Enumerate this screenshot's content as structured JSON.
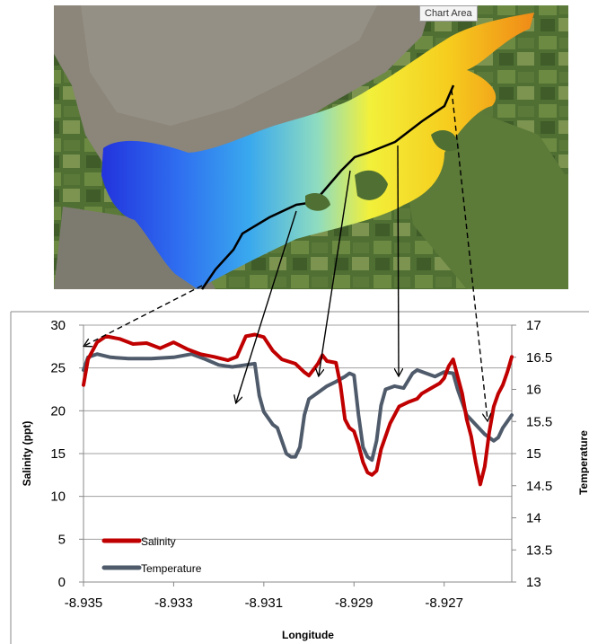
{
  "tooltip": "Chart Area",
  "colors": {
    "salinity": "#c00000",
    "temperature": "#4f5b6b",
    "gridline": "#a0a0a0"
  },
  "chart_data": {
    "type": "line",
    "xlabel": "Longitude",
    "ylabel_left": "Salinity (ppt)",
    "ylabel_right": "Temperature",
    "xlim": [
      -8.935,
      -8.9255
    ],
    "xticks": [
      "-8.935",
      "-8.933",
      "-8.931",
      "-8.929",
      "-8.927"
    ],
    "ylim_left": [
      0,
      30
    ],
    "yticks_left": [
      "0",
      "5",
      "10",
      "15",
      "20",
      "25",
      "30"
    ],
    "ylim_right": [
      13,
      17
    ],
    "yticks_right": [
      "13",
      "13.5",
      "14",
      "14.5",
      "15",
      "15.5",
      "16",
      "16.5",
      "17"
    ],
    "grid": true,
    "legend": {
      "position": "bottom-left",
      "entries": [
        "Salinity",
        "Temperature"
      ]
    },
    "series": [
      {
        "name": "Salinity",
        "axis": "left",
        "points": [
          [
            -8.935,
            23.0
          ],
          [
            -8.9349,
            26.0
          ],
          [
            -8.9347,
            28.0
          ],
          [
            -8.9345,
            28.7
          ],
          [
            -8.9342,
            28.4
          ],
          [
            -8.9339,
            27.8
          ],
          [
            -8.9336,
            27.9
          ],
          [
            -8.9333,
            27.3
          ],
          [
            -8.933,
            28.0
          ],
          [
            -8.9327,
            27.2
          ],
          [
            -8.9324,
            26.6
          ],
          [
            -8.9321,
            26.3
          ],
          [
            -8.9318,
            25.9
          ],
          [
            -8.9316,
            26.3
          ],
          [
            -8.9314,
            28.7
          ],
          [
            -8.9312,
            28.9
          ],
          [
            -8.931,
            28.6
          ],
          [
            -8.9308,
            27.0
          ],
          [
            -8.9306,
            26.0
          ],
          [
            -8.9303,
            25.5
          ],
          [
            -8.9301,
            24.5
          ],
          [
            -8.93,
            24.1
          ],
          [
            -8.9298,
            25.5
          ],
          [
            -8.9297,
            26.5
          ],
          [
            -8.9296,
            25.8
          ],
          [
            -8.9294,
            25.6
          ],
          [
            -8.9293,
            23.0
          ],
          [
            -8.9292,
            19.0
          ],
          [
            -8.9291,
            18.0
          ],
          [
            -8.929,
            17.6
          ],
          [
            -8.9289,
            16.0
          ],
          [
            -8.9288,
            14.0
          ],
          [
            -8.9287,
            12.8
          ],
          [
            -8.9286,
            12.5
          ],
          [
            -8.9285,
            13.0
          ],
          [
            -8.9284,
            15.5
          ],
          [
            -8.9282,
            18.5
          ],
          [
            -8.928,
            20.5
          ],
          [
            -8.9278,
            21.0
          ],
          [
            -8.9276,
            21.4
          ],
          [
            -8.9275,
            22.0
          ],
          [
            -8.9273,
            22.6
          ],
          [
            -8.9271,
            23.2
          ],
          [
            -8.927,
            23.8
          ],
          [
            -8.9269,
            25.2
          ],
          [
            -8.9268,
            26.0
          ],
          [
            -8.9267,
            24.0
          ],
          [
            -8.9266,
            22.0
          ],
          [
            -8.9265,
            19.0
          ],
          [
            -8.9264,
            17.0
          ],
          [
            -8.9263,
            14.0
          ],
          [
            -8.9262,
            11.4
          ],
          [
            -8.9261,
            13.5
          ],
          [
            -8.926,
            17.5
          ],
          [
            -8.9259,
            20.5
          ],
          [
            -8.9258,
            22.0
          ],
          [
            -8.9257,
            23.0
          ],
          [
            -8.9256,
            24.5
          ],
          [
            -8.9255,
            26.3
          ]
        ]
      },
      {
        "name": "Temperature",
        "axis": "right",
        "points": [
          [
            -8.935,
            16.3
          ],
          [
            -8.9349,
            16.5
          ],
          [
            -8.9347,
            16.55
          ],
          [
            -8.9344,
            16.5
          ],
          [
            -8.934,
            16.48
          ],
          [
            -8.9335,
            16.48
          ],
          [
            -8.933,
            16.5
          ],
          [
            -8.9326,
            16.55
          ],
          [
            -8.9323,
            16.47
          ],
          [
            -8.932,
            16.38
          ],
          [
            -8.9317,
            16.35
          ],
          [
            -8.9314,
            16.38
          ],
          [
            -8.9312,
            16.4
          ],
          [
            -8.9311,
            15.9
          ],
          [
            -8.931,
            15.65
          ],
          [
            -8.9309,
            15.55
          ],
          [
            -8.9308,
            15.45
          ],
          [
            -8.9307,
            15.4
          ],
          [
            -8.9306,
            15.2
          ],
          [
            -8.9305,
            15.0
          ],
          [
            -8.9304,
            14.95
          ],
          [
            -8.9303,
            14.95
          ],
          [
            -8.9302,
            15.1
          ],
          [
            -8.9301,
            15.6
          ],
          [
            -8.93,
            15.85
          ],
          [
            -8.9298,
            15.95
          ],
          [
            -8.9296,
            16.05
          ],
          [
            -8.9294,
            16.12
          ],
          [
            -8.9292,
            16.2
          ],
          [
            -8.9291,
            16.25
          ],
          [
            -8.929,
            16.22
          ],
          [
            -8.9289,
            15.6
          ],
          [
            -8.9288,
            15.1
          ],
          [
            -8.9287,
            14.95
          ],
          [
            -8.9286,
            14.9
          ],
          [
            -8.9285,
            15.2
          ],
          [
            -8.9284,
            15.75
          ],
          [
            -8.9283,
            16.0
          ],
          [
            -8.9281,
            16.05
          ],
          [
            -8.9279,
            16.02
          ],
          [
            -8.9277,
            16.25
          ],
          [
            -8.9276,
            16.3
          ],
          [
            -8.9274,
            16.25
          ],
          [
            -8.9272,
            16.2
          ],
          [
            -8.927,
            16.27
          ],
          [
            -8.9268,
            16.25
          ],
          [
            -8.9267,
            16.0
          ],
          [
            -8.9265,
            15.6
          ],
          [
            -8.9263,
            15.45
          ],
          [
            -8.9261,
            15.3
          ],
          [
            -8.9259,
            15.2
          ],
          [
            -8.9258,
            15.25
          ],
          [
            -8.9257,
            15.4
          ],
          [
            -8.9256,
            15.5
          ],
          [
            -8.9255,
            15.6
          ]
        ]
      }
    ]
  }
}
